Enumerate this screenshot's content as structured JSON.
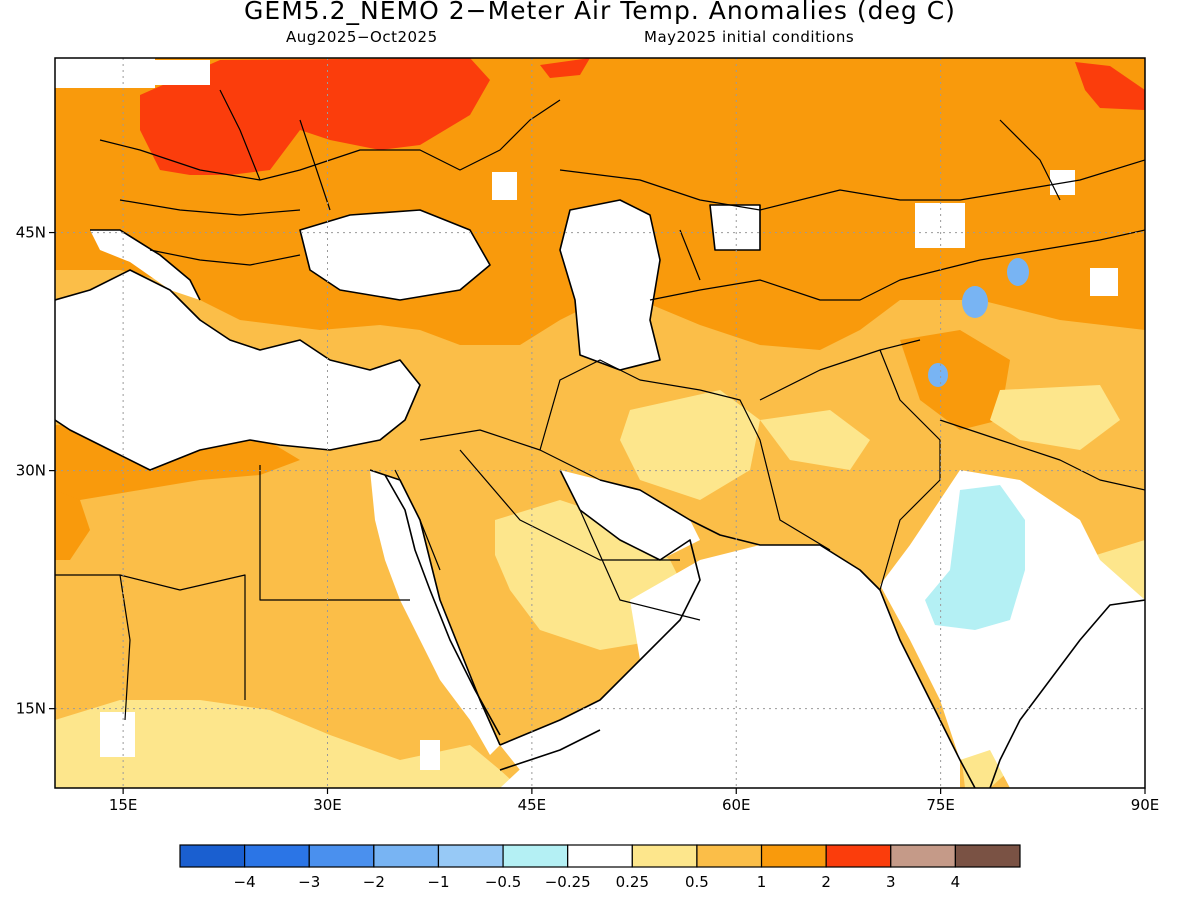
{
  "title": "GEM5.2_NEMO 2−Meter Air Temp. Anomalies (deg C)",
  "subtitle_left": "Aug2025−Oct2025",
  "subtitle_right": "May2025 initial conditions",
  "lon_ticks": [
    {
      "value": 15,
      "label": "15E"
    },
    {
      "value": 30,
      "label": "30E"
    },
    {
      "value": 45,
      "label": "45E"
    },
    {
      "value": 60,
      "label": "60E"
    },
    {
      "value": 75,
      "label": "75E"
    },
    {
      "value": 90,
      "label": "90E"
    }
  ],
  "lat_ticks": [
    {
      "value": 45,
      "label": "45N"
    },
    {
      "value": 30,
      "label": "30N"
    },
    {
      "value": 15,
      "label": "15N"
    }
  ],
  "extent": {
    "lon_min": 10,
    "lon_max": 90,
    "lat_min": 10,
    "lat_max": 56
  },
  "legend": {
    "colors": [
      "#1a5fd0",
      "#2b75e6",
      "#4a90ee",
      "#78b4f3",
      "#97c9f6",
      "#b4f0f4",
      "#ffffff",
      "#fde68c",
      "#fbbe48",
      "#f99a0c",
      "#fb3d0c",
      "#c59a88",
      "#7a5244"
    ],
    "labels": [
      "−4",
      "−3",
      "−2",
      "−1",
      "−0.5",
      "−0.25",
      "0.25",
      "0.5",
      "1",
      "2",
      "3",
      "4"
    ]
  },
  "fill_colors": {
    "ocean": "#ffffff",
    "weak": "#fde68c",
    "moderate": "#fbbe48",
    "strong": "#f99a0c",
    "very_strong": "#fb3d0c",
    "cool": "#b4f0f4",
    "cooler": "#78b4f3"
  }
}
